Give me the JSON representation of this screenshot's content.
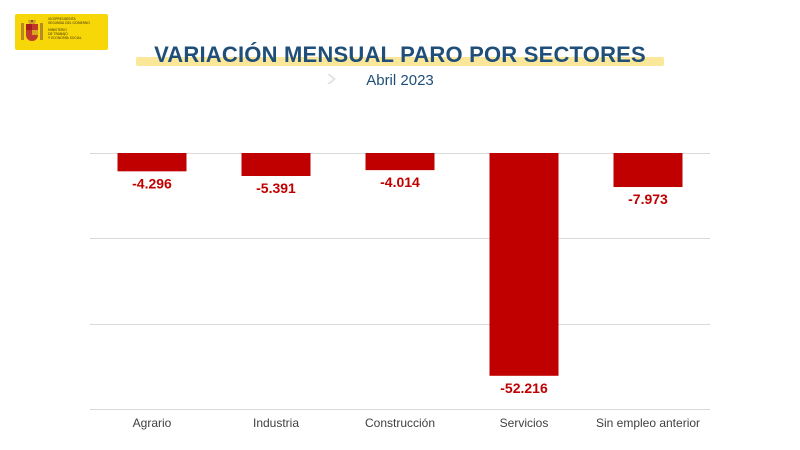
{
  "logo": {
    "org_line1": "Vicepresidenta",
    "org_line2": "Segunda del Gobierno",
    "org_line3": "Ministerio",
    "org_line4": "de Trabajo",
    "org_line5": "y Economía Social"
  },
  "colors": {
    "bar": "#c00000",
    "title": "#1f4e79",
    "label": "#c00000",
    "grid": "#d9d9d9"
  },
  "chart_data": {
    "type": "bar",
    "title": "VARIACIÓN MENSUAL PARO POR SECTORES",
    "subtitle": "Abril 2023",
    "categories": [
      "Agrario",
      "Industria",
      "Construcción",
      "Servicios",
      "Sin empleo anterior"
    ],
    "values": [
      -4296,
      -5391,
      -4014,
      -52216,
      -7973
    ],
    "data_labels": [
      "-4.296",
      "-5.391",
      "-4.014",
      "-52.216",
      "-7.973"
    ],
    "ylim": [
      -60000,
      0
    ],
    "grid": true,
    "xlabel": "",
    "ylabel": ""
  }
}
